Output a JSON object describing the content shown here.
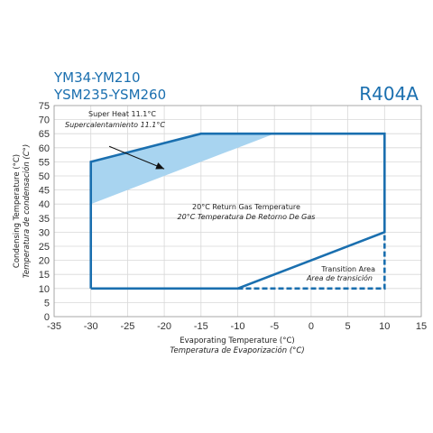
{
  "header": {
    "model_line_1": "YM34-YM210",
    "model_line_2": "YSM235-YSM260",
    "refrigerant": "R404A"
  },
  "colors": {
    "envelope": "#1a6faf",
    "superheat_fill": "#a8d4f0",
    "text_blue": "#1a6faf",
    "grid": "#d8d8d8"
  },
  "chart_data": {
    "type": "area",
    "title": "",
    "xlabel": "Evaporating Temperature (°C)",
    "xlabel_alt": "Temperatura de Evaporización (°C)",
    "ylabel": "Condensing Temperature (°C)",
    "ylabel_alt": "Temperatura de condensación (C°)",
    "xlim": [
      -35,
      15
    ],
    "ylim": [
      0,
      75
    ],
    "xticks": [
      -35,
      -30,
      -25,
      -20,
      -15,
      -10,
      -5,
      0,
      5,
      10,
      15
    ],
    "yticks": [
      0,
      5,
      10,
      15,
      20,
      25,
      30,
      35,
      40,
      45,
      50,
      55,
      60,
      65,
      70,
      75
    ],
    "grid": true,
    "series": [
      {
        "name": "20°C Return Gas Temperature",
        "name_alt": "20°C Temperatura De Retorno De Gas",
        "style": "solid",
        "points": [
          [
            -30,
            10
          ],
          [
            -10,
            10
          ],
          [
            10,
            30
          ],
          [
            10,
            65
          ],
          [
            -15,
            65
          ],
          [
            -30,
            55
          ],
          [
            -30,
            10
          ]
        ]
      },
      {
        "name": "Transition Area",
        "name_alt": "Area de transición",
        "style": "dashed",
        "points": [
          [
            -10,
            10
          ],
          [
            10,
            10
          ],
          [
            10,
            30
          ]
        ]
      },
      {
        "name": "Super Heat 11.1°C",
        "name_alt": "Supercalentamiento 11.1°C",
        "style": "fill",
        "points": [
          [
            -30,
            55
          ],
          [
            -15,
            65
          ],
          [
            -5,
            65
          ],
          [
            -30,
            40
          ]
        ]
      }
    ]
  }
}
